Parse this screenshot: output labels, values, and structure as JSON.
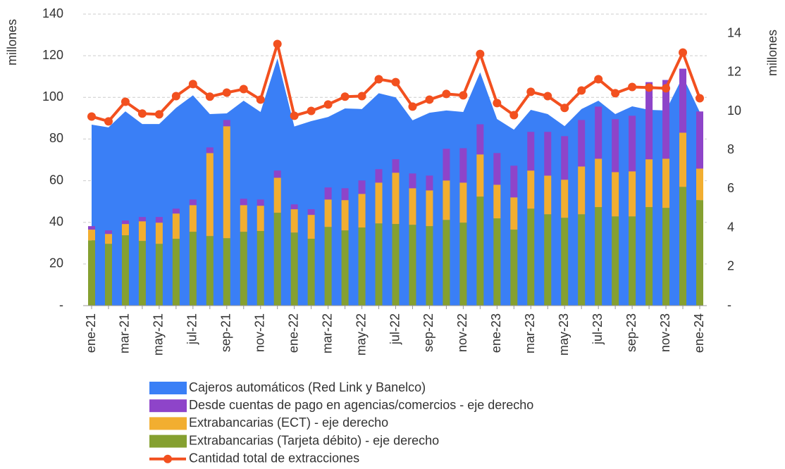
{
  "chart_data": {
    "type": "bar",
    "ylabel": "millones",
    "y2label": "millones",
    "categories": [
      "ene-21",
      null,
      "mar-21",
      null,
      "may-21",
      null,
      "jul-21",
      null,
      "sep-21",
      null,
      "nov-21",
      null,
      "ene-22",
      null,
      "mar-22",
      null,
      "may-22",
      null,
      "jul-22",
      null,
      "sep-22",
      null,
      "nov-22",
      null,
      "ene-23",
      null,
      "mar-23",
      null,
      "may-23",
      null,
      "jul-23",
      null,
      "sep-23",
      null,
      "nov-23",
      null,
      "ene-24"
    ],
    "series": [
      {
        "name": "Cajeros automáticos (Red Link y Banelco)",
        "type": "area",
        "axis": "y",
        "color": "#3a7ff6",
        "values": [
          86.9,
          85.6,
          93.3,
          87.2,
          87.2,
          95,
          101,
          92,
          92.3,
          98.4,
          93,
          118.7,
          86,
          88.6,
          90.6,
          94.7,
          94.4,
          102,
          100,
          89,
          92.6,
          93.7,
          93,
          112,
          89.6,
          84.5,
          94,
          92,
          86.2,
          94.4,
          98.4,
          92,
          95.7,
          94,
          93.7,
          110,
          93
        ]
      },
      {
        "name": "Desde cuentas de pago en agencias/comercios - eje derecho",
        "type": "bar",
        "axis": "y2",
        "color": "#8e44c9",
        "values": [
          0.18,
          0.18,
          0.18,
          0.22,
          0.29,
          0.25,
          0.29,
          0.29,
          0.32,
          0.33,
          0.32,
          0.37,
          0.25,
          0.29,
          0.62,
          0.61,
          0.69,
          0.69,
          0.69,
          0.76,
          0.76,
          1.63,
          1.77,
          1.55,
          1.63,
          1.63,
          1.99,
          2.25,
          2.24,
          2.39,
          2.68,
          2.72,
          2.86,
          3.97,
          4.05,
          3.29,
          2.94
        ]
      },
      {
        "name": "Extrabancarias (ECT) - eje derecho",
        "type": "bar",
        "axis": "y2",
        "color": "#f2ae30",
        "values": [
          0.55,
          0.51,
          0.58,
          1.01,
          1.09,
          1.3,
          1.37,
          4.27,
          5.76,
          1.37,
          1.3,
          1.8,
          1.2,
          1.23,
          1.41,
          1.56,
          1.73,
          2.1,
          2.64,
          1.88,
          1.84,
          2.03,
          2.06,
          2.17,
          1.73,
          1.66,
          1.96,
          1.99,
          1.96,
          2.46,
          2.49,
          2.28,
          2.32,
          2.46,
          2.53,
          2.79,
          1.62
        ]
      },
      {
        "name": "Extrabancarias (Tarjeta débito) - eje derecho",
        "type": "bar",
        "axis": "y2",
        "color": "#85a030",
        "values": [
          3.36,
          3.18,
          3.62,
          3.33,
          3.18,
          3.44,
          3.8,
          3.58,
          3.47,
          3.8,
          3.84,
          4.78,
          3.76,
          3.44,
          4.05,
          3.87,
          4.02,
          4.23,
          4.2,
          4.16,
          4.09,
          4.41,
          4.27,
          5.61,
          4.49,
          3.91,
          4.99,
          4.7,
          4.52,
          4.7,
          5.07,
          4.59,
          4.59,
          5.07,
          5.03,
          6.11,
          5.43
        ]
      },
      {
        "name": "Cantidad total de extracciones",
        "type": "line",
        "axis": "y2",
        "color": "#f2501f",
        "values": [
          9.73,
          9.48,
          10.49,
          9.88,
          9.84,
          10.78,
          11.4,
          10.75,
          10.96,
          11.14,
          10.6,
          13.46,
          9.77,
          10.02,
          10.35,
          10.75,
          10.78,
          11.65,
          11.5,
          10.24,
          10.6,
          10.89,
          10.82,
          12.95,
          10.42,
          9.8,
          11.0,
          10.78,
          10.17,
          11.07,
          11.65,
          10.93,
          11.25,
          11.22,
          11.18,
          13.02,
          10.67
        ]
      }
    ],
    "ylim": [
      0,
      140
    ],
    "yticks": [
      {
        "value": 0,
        "label": "-"
      },
      20,
      40,
      60,
      80,
      100,
      120,
      140
    ],
    "y2lim": [
      0,
      15
    ],
    "y2ticks": [
      {
        "value": 0,
        "label": "-"
      },
      2,
      4,
      6,
      8,
      10,
      12,
      14
    ],
    "grid": true
  }
}
